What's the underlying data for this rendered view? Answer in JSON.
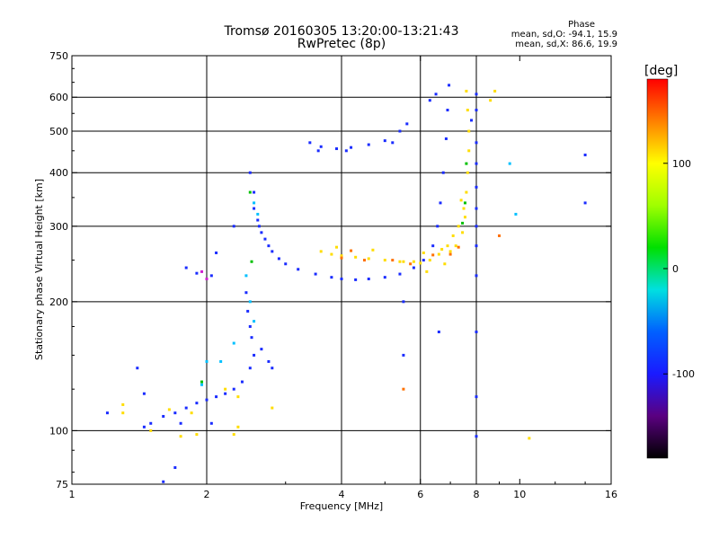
{
  "header": {
    "title_line1": "Tromsø 20160305 13:20:00-13:21:43",
    "title_line2": "RwPretec (8p)",
    "phase_heading": "Phase",
    "phase_line1": "mean, sd,O: -94.1, 15.9",
    "phase_line2": "mean, sd,X:  86.6, 19.9"
  },
  "colorbar": {
    "unit_label": "[deg]",
    "ticks": [
      {
        "value": 100,
        "label": "100"
      },
      {
        "value": 0,
        "label": "0"
      },
      {
        "value": -100,
        "label": "-100"
      }
    ],
    "range": [
      -180,
      180
    ],
    "colors": [
      "#000000",
      "#5a0080",
      "#1a1aff",
      "#0060ff",
      "#00e0e0",
      "#00e000",
      "#a0ff00",
      "#ffff00",
      "#ff8000",
      "#ff0000"
    ]
  },
  "chart_data": {
    "type": "scatter",
    "xlabel": "Frequency [MHz]",
    "ylabel": "Stationary phase Virtual Height [km]",
    "xscale": "log",
    "yscale": "log",
    "xlim": [
      1,
      16
    ],
    "ylim": [
      75,
      750
    ],
    "grid": true,
    "xticks": [
      {
        "value": 1,
        "label": "1"
      },
      {
        "value": 2,
        "label": "2"
      },
      {
        "value": 4,
        "label": "4"
      },
      {
        "value": 6,
        "label": "6"
      },
      {
        "value": 8,
        "label": "8"
      },
      {
        "value": 10,
        "label": "10"
      },
      {
        "value": 16,
        "label": "16"
      }
    ],
    "yticks": [
      {
        "value": 75,
        "label": "75"
      },
      {
        "value": 100,
        "label": "100"
      },
      {
        "value": 200,
        "label": "200"
      },
      {
        "value": 300,
        "label": "300"
      },
      {
        "value": 400,
        "label": "400"
      },
      {
        "value": 500,
        "label": "500"
      },
      {
        "value": 600,
        "label": "600"
      },
      {
        "value": 750,
        "label": "750"
      }
    ],
    "x_gridlines": [
      2,
      4,
      6,
      8
    ],
    "y_gridlines": [
      100,
      200,
      300,
      400,
      500,
      600
    ],
    "series": [
      {
        "color": "#1a2cff",
        "points": [
          [
            2.5,
            400
          ],
          [
            2.55,
            360
          ],
          [
            2.55,
            330
          ],
          [
            2.6,
            310
          ],
          [
            2.62,
            300
          ],
          [
            2.65,
            290
          ],
          [
            2.7,
            280
          ],
          [
            2.75,
            270
          ],
          [
            2.8,
            262
          ],
          [
            2.9,
            252
          ],
          [
            3.0,
            245
          ],
          [
            3.2,
            238
          ],
          [
            3.5,
            232
          ],
          [
            3.8,
            228
          ],
          [
            4.0,
            226
          ],
          [
            4.3,
            225
          ],
          [
            4.6,
            226
          ],
          [
            5.0,
            228
          ],
          [
            5.4,
            232
          ],
          [
            5.8,
            240
          ],
          [
            6.1,
            250
          ],
          [
            6.4,
            270
          ],
          [
            6.55,
            300
          ],
          [
            6.65,
            340
          ],
          [
            6.75,
            400
          ],
          [
            6.85,
            480
          ],
          [
            6.9,
            560
          ],
          [
            6.95,
            640
          ],
          [
            6.5,
            610
          ],
          [
            6.3,
            590
          ],
          [
            3.4,
            470
          ],
          [
            3.6,
            460
          ],
          [
            3.9,
            455
          ],
          [
            4.2,
            458
          ],
          [
            4.6,
            465
          ],
          [
            5.0,
            475
          ],
          [
            5.4,
            500
          ],
          [
            5.6,
            520
          ],
          [
            3.55,
            450
          ],
          [
            4.1,
            450
          ],
          [
            5.2,
            470
          ]
        ]
      },
      {
        "color": "#1a2cff",
        "points": [
          [
            2.45,
            210
          ],
          [
            2.47,
            190
          ],
          [
            2.5,
            175
          ],
          [
            2.52,
            165
          ],
          [
            2.55,
            150
          ],
          [
            2.5,
            140
          ],
          [
            2.4,
            130
          ],
          [
            2.3,
            125
          ],
          [
            2.2,
            122
          ],
          [
            2.1,
            120
          ],
          [
            2.0,
            118
          ],
          [
            1.9,
            116
          ],
          [
            1.8,
            113
          ],
          [
            1.7,
            110
          ],
          [
            1.6,
            108
          ],
          [
            1.5,
            104
          ],
          [
            1.45,
            102
          ],
          [
            1.75,
            104
          ],
          [
            2.05,
            104
          ],
          [
            2.65,
            155
          ],
          [
            2.75,
            145
          ],
          [
            2.8,
            140
          ],
          [
            1.8,
            240
          ],
          [
            1.9,
            233
          ],
          [
            2.05,
            230
          ],
          [
            1.2,
            110
          ],
          [
            1.4,
            140
          ],
          [
            1.45,
            122
          ],
          [
            1.6,
            76
          ],
          [
            1.7,
            82
          ],
          [
            2.1,
            260
          ],
          [
            2.3,
            300
          ]
        ]
      },
      {
        "color": "#ffdd00",
        "points": [
          [
            3.6,
            262
          ],
          [
            3.8,
            258
          ],
          [
            4.0,
            256
          ],
          [
            4.3,
            254
          ],
          [
            4.6,
            252
          ],
          [
            5.0,
            250
          ],
          [
            5.4,
            248
          ],
          [
            5.8,
            248
          ],
          [
            6.0,
            246
          ],
          [
            6.3,
            250
          ],
          [
            6.6,
            258
          ],
          [
            6.9,
            270
          ],
          [
            7.1,
            285
          ],
          [
            7.3,
            300
          ],
          [
            7.5,
            330
          ],
          [
            7.6,
            360
          ],
          [
            7.65,
            400
          ],
          [
            7.7,
            450
          ],
          [
            7.7,
            500
          ],
          [
            7.65,
            560
          ],
          [
            7.6,
            620
          ],
          [
            5.5,
            248
          ],
          [
            6.1,
            260
          ],
          [
            4.7,
            264
          ],
          [
            7.4,
            345
          ],
          [
            7.55,
            315
          ],
          [
            3.9,
            268
          ],
          [
            6.7,
            265
          ],
          [
            7.0,
            262
          ],
          [
            7.2,
            270
          ],
          [
            7.45,
            290
          ],
          [
            6.2,
            235
          ],
          [
            6.8,
            245
          ]
        ]
      },
      {
        "color": "#ffdd00",
        "points": [
          [
            1.3,
            110
          ],
          [
            1.3,
            115
          ],
          [
            1.5,
            100
          ],
          [
            1.65,
            112
          ],
          [
            1.85,
            110
          ],
          [
            2.2,
            125
          ],
          [
            2.3,
            98
          ],
          [
            2.35,
            102
          ],
          [
            2.8,
            113
          ],
          [
            1.75,
            97
          ],
          [
            1.9,
            98
          ],
          [
            2.35,
            120
          ]
        ]
      },
      {
        "color": "#00c0ff",
        "points": [
          [
            2.55,
            340
          ],
          [
            2.6,
            320
          ],
          [
            2.45,
            230
          ],
          [
            2.5,
            200
          ],
          [
            2.55,
            180
          ],
          [
            2.3,
            160
          ],
          [
            1.95,
            128
          ],
          [
            2.15,
            145
          ],
          [
            2.0,
            145
          ]
        ]
      },
      {
        "color": "#00c000",
        "points": [
          [
            2.5,
            360
          ],
          [
            2.52,
            248
          ],
          [
            1.95,
            130
          ],
          [
            7.55,
            340
          ],
          [
            7.6,
            420
          ],
          [
            7.45,
            305
          ]
        ]
      },
      {
        "color": "#ff7000",
        "points": [
          [
            4.0,
            253
          ],
          [
            4.5,
            250
          ],
          [
            5.2,
            250
          ],
          [
            5.7,
            245
          ],
          [
            6.4,
            257
          ],
          [
            7.0,
            258
          ],
          [
            7.3,
            268
          ],
          [
            4.2,
            263
          ],
          [
            9.0,
            285
          ]
        ]
      },
      {
        "color": "#d020d0",
        "points": [
          [
            1.95,
            235
          ],
          [
            2.0,
            226
          ]
        ]
      },
      {
        "color": "#1a2cff",
        "points": [
          [
            8.0,
            610
          ],
          [
            8.0,
            560
          ],
          [
            8.0,
            470
          ],
          [
            8.0,
            420
          ],
          [
            8.0,
            370
          ],
          [
            8.0,
            330
          ],
          [
            8.0,
            300
          ],
          [
            8.0,
            270
          ],
          [
            8.0,
            230
          ],
          [
            8.0,
            170
          ],
          [
            8.0,
            120
          ],
          [
            8.0,
            97
          ],
          [
            7.8,
            530
          ],
          [
            6.6,
            170
          ],
          [
            5.5,
            150
          ],
          [
            5.5,
            200
          ],
          [
            14,
            440
          ],
          [
            14,
            340
          ]
        ]
      },
      {
        "color": "#00c0ff",
        "points": [
          [
            9.5,
            420
          ],
          [
            9.8,
            320
          ]
        ]
      },
      {
        "color": "#ffdd00",
        "points": [
          [
            10.5,
            96
          ],
          [
            8.8,
            620
          ],
          [
            8.6,
            590
          ]
        ]
      },
      {
        "color": "#ff7000",
        "points": [
          [
            5.5,
            125
          ]
        ]
      }
    ]
  }
}
